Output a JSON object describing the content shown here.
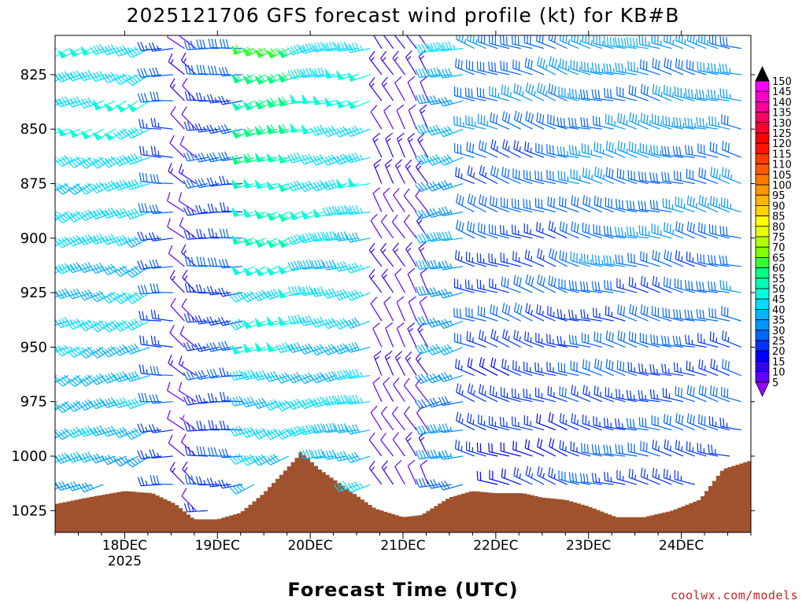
{
  "chart_data": {
    "type": "wind-barb-profile",
    "title": "2025121706 GFS forecast wind profile (kt) for KB#B",
    "xlabel": "Forecast Time (UTC)",
    "credit": "coolwx.com/models",
    "x_ticks": [
      "18DEC",
      "19DEC",
      "20DEC",
      "21DEC",
      "22DEC",
      "23DEC",
      "24DEC"
    ],
    "x_tick_sublabel": "2025",
    "x_range_days": [
      17.25,
      24.75
    ],
    "y_ticks": [
      825,
      850,
      875,
      900,
      925,
      950,
      975,
      1000,
      1025
    ],
    "y_range_hPa": [
      1035,
      807
    ],
    "levels_hPa": [
      813,
      825,
      837,
      850,
      863,
      875,
      888,
      900,
      913,
      925,
      938,
      950,
      963,
      975,
      988,
      1000,
      1013,
      1025
    ],
    "colorbar": {
      "labels": [
        "150",
        "145",
        "140",
        "135",
        "130",
        "125",
        "120",
        "115",
        "110",
        "105",
        "100",
        "95",
        "90",
        "85",
        "80",
        "75",
        "70",
        "65",
        "60",
        "55",
        "50",
        "45",
        "40",
        "35",
        "30",
        "25",
        "20",
        "15",
        "10",
        "5"
      ],
      "colors": [
        "#ff00ff",
        "#f600c8",
        "#ff0096",
        "#ff0064",
        "#ff0032",
        "#ff0000",
        "#ff1400",
        "#ff3c00",
        "#ff5a00",
        "#ff7800",
        "#ff9600",
        "#ffb400",
        "#ffd200",
        "#ffff00",
        "#e6ff00",
        "#b4ff00",
        "#82ff00",
        "#32ff32",
        "#00ff82",
        "#00ffb4",
        "#00ffdc",
        "#00dcff",
        "#00b4ff",
        "#0096ff",
        "#0064ff",
        "#0032ff",
        "#0000ff",
        "#3200ff",
        "#6400ff",
        "#9600ff"
      ]
    },
    "surface_pressure": {
      "color": "#a0522d",
      "days": [
        17.25,
        17.6,
        18.0,
        18.3,
        18.55,
        18.75,
        19.0,
        19.25,
        19.5,
        19.7,
        19.85,
        19.9,
        20.1,
        20.4,
        20.7,
        21.0,
        21.2,
        21.5,
        21.75,
        22.0,
        22.3,
        22.5,
        22.75,
        23.0,
        23.3,
        23.6,
        23.9,
        24.2,
        24.45,
        24.75
      ],
      "pressure": [
        1022,
        1019,
        1016,
        1017,
        1022,
        1029,
        1029,
        1026,
        1017,
        1008,
        1001,
        998,
        1006,
        1015,
        1024,
        1028,
        1027,
        1019,
        1016,
        1017,
        1017,
        1019,
        1020,
        1023,
        1028,
        1028,
        1025,
        1020,
        1006,
        1002
      ]
    },
    "wind_regimes": [
      {
        "from_day": 17.25,
        "to_day": 18.35,
        "dir_deg": 245,
        "speed_kt": 48,
        "speed_sfc_kt": 38
      },
      {
        "from_day": 18.35,
        "to_day": 18.55,
        "dir_deg": 270,
        "speed_kt": 30,
        "speed_sfc_kt": 25
      },
      {
        "from_day": 18.55,
        "to_day": 18.85,
        "dir_deg": 310,
        "speed_kt": 12,
        "speed_sfc_kt": 10
      },
      {
        "from_day": 18.85,
        "to_day": 19.35,
        "dir_deg": 265,
        "speed_kt": 28,
        "speed_sfc_kt": 25
      },
      {
        "from_day": 19.35,
        "to_day": 19.95,
        "dir_deg": 250,
        "speed_kt": 62,
        "speed_sfc_kt": 38
      },
      {
        "from_day": 19.95,
        "to_day": 20.7,
        "dir_deg": 255,
        "speed_kt": 48,
        "speed_sfc_kt": 40
      },
      {
        "from_day": 20.7,
        "to_day": 21.3,
        "dir_deg": 330,
        "speed_kt": 14,
        "speed_sfc_kt": 10
      },
      {
        "from_day": 21.3,
        "to_day": 21.75,
        "dir_deg": 255,
        "speed_kt": 40,
        "speed_sfc_kt": 32
      },
      {
        "from_day": 21.75,
        "to_day": 22.8,
        "dir_deg": 290,
        "speed_kt": 32,
        "speed_sfc_kt": 22
      },
      {
        "from_day": 22.8,
        "to_day": 24.75,
        "dir_deg": 285,
        "speed_kt": 35,
        "speed_sfc_kt": 25
      }
    ],
    "barb_time_step_days": 0.125
  }
}
